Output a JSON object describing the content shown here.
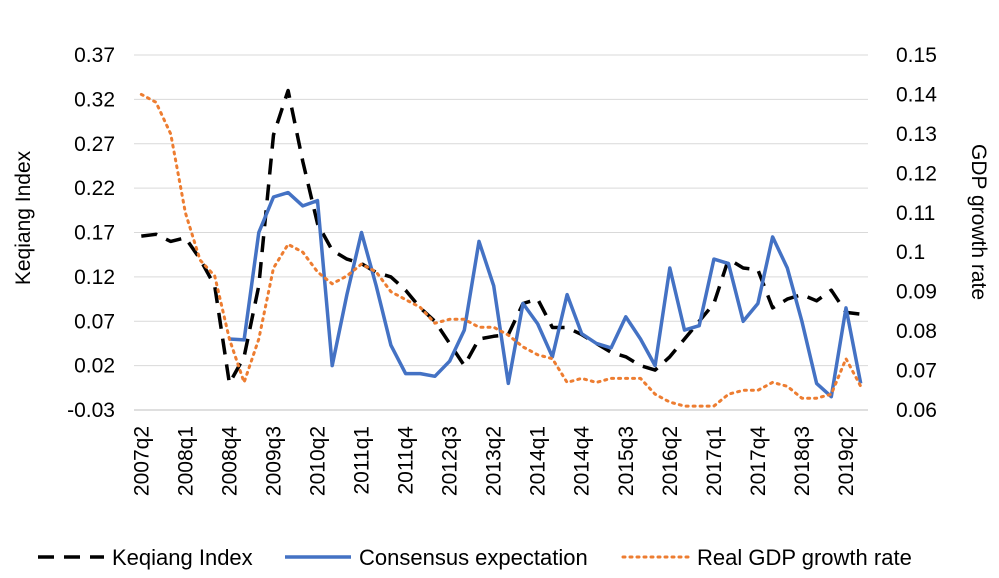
{
  "chart_data": {
    "type": "line",
    "title": "",
    "x": [
      "2007q2",
      "2007q3",
      "2007q4",
      "2008q1",
      "2008q2",
      "2008q3",
      "2008q4",
      "2009q1",
      "2009q2",
      "2009q3",
      "2009q4",
      "2010q1",
      "2010q2",
      "2010q3",
      "2010q4",
      "2011q1",
      "2011q2",
      "2011q3",
      "2011q4",
      "2012q1",
      "2012q2",
      "2012q3",
      "2012q4",
      "2013q1",
      "2013q2",
      "2013q3",
      "2013q4",
      "2014q1",
      "2014q2",
      "2014q3",
      "2014q4",
      "2015q1",
      "2015q2",
      "2015q3",
      "2015q4",
      "2016q1",
      "2016q2",
      "2016q3",
      "2016q4",
      "2017q1",
      "2017q2",
      "2017q3",
      "2017q4",
      "2018q1",
      "2018q2",
      "2018q3",
      "2018q4",
      "2019q1",
      "2019q2",
      "2019q3"
    ],
    "x_tick_labels": [
      "2007q2",
      "2008q1",
      "2008q4",
      "2009q3",
      "2010q2",
      "2011q1",
      "2011q4",
      "2012q3",
      "2013q2",
      "2014q1",
      "2014q4",
      "2015q3",
      "2016q2",
      "2017q1",
      "2017q4",
      "2018q3",
      "2019q2"
    ],
    "y_left": {
      "label": "Keqiang Index",
      "ticks": [
        "-0.03",
        "0.02",
        "0.07",
        "0.12",
        "0.17",
        "0.22",
        "0.27",
        "0.32",
        "0.37"
      ],
      "min": -0.03,
      "max": 0.37
    },
    "y_right": {
      "label": "GDP growth rate",
      "ticks": [
        "0.06",
        "0.07",
        "0.08",
        "0.09",
        "0.1",
        "0.11",
        "0.12",
        "0.13",
        "0.14",
        "0.15"
      ],
      "min": 0.06,
      "max": 0.15
    },
    "grid": true,
    "legend_position": "bottom",
    "series": [
      {
        "name": "Keqiang Index",
        "axis": "left",
        "style": "dashed",
        "color": "#000000",
        "values": [
          0.166,
          0.168,
          0.16,
          0.164,
          0.14,
          0.11,
          0.0,
          0.03,
          0.11,
          0.28,
          0.33,
          0.25,
          0.18,
          0.15,
          0.14,
          0.135,
          0.125,
          0.12,
          0.105,
          0.085,
          0.07,
          0.045,
          0.02,
          0.05,
          0.053,
          0.055,
          0.09,
          0.095,
          0.063,
          0.063,
          0.055,
          0.045,
          0.035,
          0.03,
          0.02,
          0.015,
          0.03,
          0.05,
          0.07,
          0.09,
          0.14,
          0.13,
          0.128,
          0.085,
          0.095,
          0.1,
          0.093,
          0.105,
          0.08,
          0.078
        ]
      },
      {
        "name": "Consensus expectation",
        "axis": "left",
        "style": "solid",
        "color": "#4472c4",
        "values": [
          null,
          null,
          null,
          null,
          null,
          null,
          0.05,
          0.049,
          0.17,
          0.21,
          0.215,
          0.2,
          0.206,
          0.02,
          0.1,
          0.17,
          0.11,
          0.043,
          0.011,
          0.011,
          0.008,
          0.025,
          0.06,
          0.16,
          0.11,
          0.0,
          0.09,
          0.067,
          0.03,
          0.1,
          0.056,
          0.045,
          0.04,
          0.075,
          0.05,
          0.02,
          0.13,
          0.06,
          0.065,
          0.14,
          0.135,
          0.07,
          0.09,
          0.165,
          0.13,
          0.07,
          0.0,
          -0.015,
          0.085,
          0.0
        ]
      },
      {
        "name": "Real GDP growth rate",
        "axis": "right",
        "style": "dotted",
        "color": "#ed7d31",
        "values": [
          0.14,
          0.138,
          0.13,
          0.11,
          0.098,
          0.094,
          0.078,
          0.067,
          0.078,
          0.096,
          0.102,
          0.1,
          0.095,
          0.092,
          0.094,
          0.097,
          0.095,
          0.09,
          0.088,
          0.086,
          0.082,
          0.083,
          0.083,
          0.081,
          0.081,
          0.079,
          0.076,
          0.074,
          0.073,
          0.067,
          0.068,
          0.067,
          0.068,
          0.068,
          0.068,
          0.064,
          0.062,
          0.061,
          0.061,
          0.061,
          0.064,
          0.065,
          0.065,
          0.067,
          0.066,
          0.063,
          0.063,
          0.064,
          0.073,
          0.066
        ]
      }
    ]
  }
}
